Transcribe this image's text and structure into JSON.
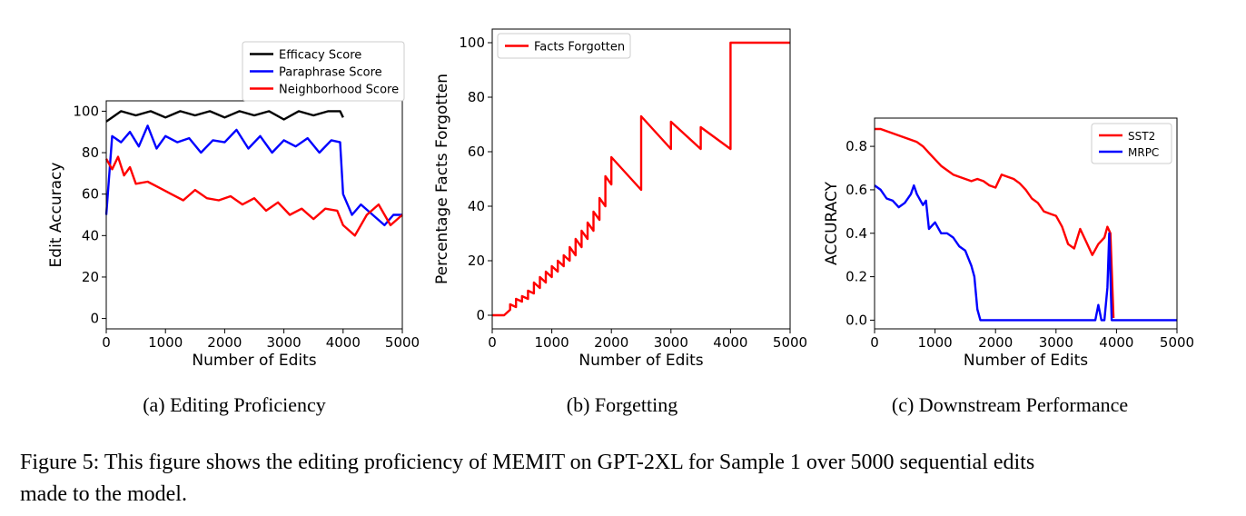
{
  "figure": {
    "caption_line1": "Figure 5: This figure shows the editing proficiency of MEMIT on GPT-2XL for Sample 1 over 5000 sequential edits",
    "caption_line2": "made to the model."
  },
  "chart_data": [
    {
      "id": "a",
      "type": "line",
      "caption": "(a) Editing Proficiency",
      "xlabel": "Number of Edits",
      "ylabel": "Edit Accuracy",
      "xlim": [
        0,
        5000
      ],
      "ylim": [
        -5,
        105
      ],
      "xticks": [
        0,
        1000,
        2000,
        3000,
        4000,
        5000
      ],
      "yticks": [
        0,
        20,
        40,
        60,
        80,
        100
      ],
      "legend_position": "top-right",
      "grid": false,
      "series": [
        {
          "name": "Efficacy Score",
          "color": "#000000",
          "x": [
            0,
            250,
            500,
            750,
            1000,
            1250,
            1500,
            1750,
            2000,
            2250,
            2500,
            2750,
            3000,
            3250,
            3500,
            3750,
            3950,
            4000
          ],
          "values": [
            95,
            100,
            98,
            100,
            97,
            100,
            98,
            100,
            97,
            100,
            98,
            100,
            96,
            100,
            98,
            100,
            100,
            97
          ]
        },
        {
          "name": "Paraphrase Score",
          "color": "#0000ff",
          "x": [
            0,
            100,
            250,
            400,
            550,
            700,
            850,
            1000,
            1200,
            1400,
            1600,
            1800,
            2000,
            2200,
            2400,
            2600,
            2800,
            3000,
            3200,
            3400,
            3600,
            3800,
            3950,
            4000,
            4150,
            4300,
            4500,
            4700,
            4850,
            5000
          ],
          "values": [
            50,
            88,
            85,
            90,
            83,
            93,
            82,
            88,
            85,
            87,
            80,
            86,
            85,
            91,
            82,
            88,
            80,
            86,
            83,
            87,
            80,
            86,
            85,
            60,
            50,
            55,
            50,
            45,
            50,
            50
          ]
        },
        {
          "name": "Neighborhood Score",
          "color": "#ff0000",
          "x": [
            0,
            100,
            200,
            300,
            400,
            500,
            700,
            900,
            1100,
            1300,
            1500,
            1700,
            1900,
            2100,
            2300,
            2500,
            2700,
            2900,
            3100,
            3300,
            3500,
            3700,
            3900,
            4000,
            4200,
            4400,
            4600,
            4800,
            5000
          ],
          "values": [
            77,
            72,
            78,
            69,
            73,
            65,
            66,
            63,
            60,
            57,
            62,
            58,
            57,
            59,
            55,
            58,
            52,
            56,
            50,
            53,
            48,
            53,
            52,
            45,
            40,
            50,
            55,
            45,
            50
          ]
        }
      ]
    },
    {
      "id": "b",
      "type": "line",
      "caption": "(b) Forgetting",
      "xlabel": "Number of Edits",
      "ylabel": "Percentage Facts Forgotten",
      "xlim": [
        0,
        5000
      ],
      "ylim": [
        -5,
        105
      ],
      "xticks": [
        0,
        1000,
        2000,
        3000,
        4000,
        5000
      ],
      "yticks": [
        0,
        20,
        40,
        60,
        80,
        100
      ],
      "legend_position": "top-left",
      "grid": false,
      "series": [
        {
          "name": "Facts Forgotten",
          "color": "#ff0000",
          "x": [
            0,
            200,
            300,
            300,
            400,
            400,
            500,
            500,
            600,
            600,
            700,
            700,
            800,
            800,
            900,
            900,
            1000,
            1000,
            1100,
            1100,
            1200,
            1200,
            1300,
            1300,
            1400,
            1400,
            1500,
            1500,
            1600,
            1600,
            1700,
            1700,
            1800,
            1800,
            1900,
            1900,
            2000,
            2000,
            2500,
            2500,
            3000,
            3000,
            3500,
            3500,
            4000,
            4000,
            5000
          ],
          "values": [
            0,
            0,
            2,
            4,
            3,
            6,
            5,
            7,
            6,
            9,
            8,
            12,
            10,
            14,
            12,
            16,
            14,
            18,
            16,
            20,
            18,
            22,
            20,
            25,
            22,
            28,
            25,
            31,
            28,
            34,
            31,
            38,
            35,
            43,
            40,
            51,
            48,
            58,
            46,
            73,
            61,
            71,
            61,
            69,
            61,
            100,
            100
          ]
        }
      ]
    },
    {
      "id": "c",
      "type": "line",
      "caption": "(c) Downstream Performance",
      "xlabel": "Number of Edits",
      "ylabel": "ACCURACY",
      "xlim": [
        0,
        5000
      ],
      "ylim": [
        -0.04,
        0.93
      ],
      "xticks": [
        0,
        1000,
        2000,
        3000,
        4000,
        5000
      ],
      "yticks": [
        0.0,
        0.2,
        0.4,
        0.6,
        0.8
      ],
      "ytick_labels": [
        "0.0",
        "0.2",
        "0.4",
        "0.6",
        "0.8"
      ],
      "legend_position": "top-right",
      "grid": false,
      "series": [
        {
          "name": "SST2",
          "color": "#ff0000",
          "x": [
            0,
            100,
            200,
            300,
            400,
            500,
            600,
            700,
            800,
            900,
            1000,
            1100,
            1200,
            1300,
            1400,
            1500,
            1600,
            1700,
            1800,
            1900,
            2000,
            2100,
            2200,
            2300,
            2400,
            2500,
            2600,
            2700,
            2800,
            2900,
            3000,
            3100,
            3200,
            3300,
            3400,
            3500,
            3600,
            3700,
            3800,
            3850,
            3900,
            3950
          ],
          "values": [
            0.88,
            0.88,
            0.87,
            0.86,
            0.85,
            0.84,
            0.83,
            0.82,
            0.8,
            0.77,
            0.74,
            0.71,
            0.69,
            0.67,
            0.66,
            0.65,
            0.64,
            0.65,
            0.64,
            0.62,
            0.61,
            0.67,
            0.66,
            0.65,
            0.63,
            0.6,
            0.56,
            0.54,
            0.5,
            0.49,
            0.48,
            0.43,
            0.35,
            0.33,
            0.42,
            0.36,
            0.3,
            0.35,
            0.38,
            0.43,
            0.4,
            0.01
          ]
        },
        {
          "name": "MRPC",
          "color": "#0000ff",
          "x": [
            0,
            100,
            200,
            300,
            400,
            500,
            600,
            650,
            700,
            800,
            850,
            900,
            1000,
            1100,
            1200,
            1300,
            1400,
            1500,
            1600,
            1650,
            1700,
            1750,
            1800,
            2000,
            2500,
            3000,
            3500,
            3650,
            3700,
            3750,
            3800,
            3850,
            3880,
            3920,
            4000,
            5000
          ],
          "values": [
            0.62,
            0.6,
            0.56,
            0.55,
            0.52,
            0.54,
            0.58,
            0.62,
            0.58,
            0.53,
            0.55,
            0.42,
            0.45,
            0.4,
            0.4,
            0.38,
            0.34,
            0.32,
            0.25,
            0.2,
            0.05,
            0.0,
            0.0,
            0.0,
            0.0,
            0.0,
            0.0,
            0.0,
            0.07,
            0.0,
            0.0,
            0.15,
            0.4,
            0.0,
            0.0,
            0.0
          ]
        }
      ]
    }
  ]
}
